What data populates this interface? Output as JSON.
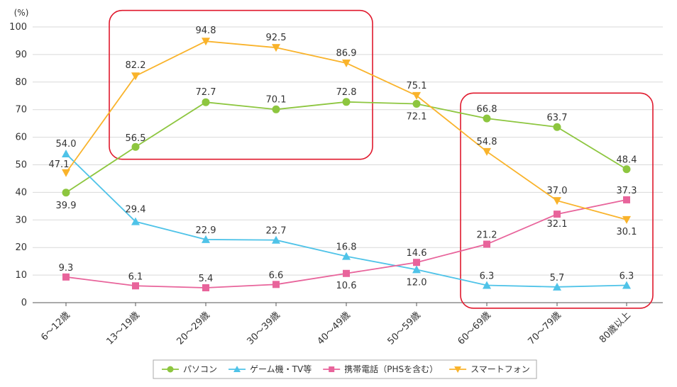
{
  "chart_data": {
    "type": "line",
    "unit_label": "(%)",
    "categories": [
      "6～12歳",
      "13～19歳",
      "20～29歳",
      "30～39歳",
      "40～49歳",
      "50～59歳",
      "60～69歳",
      "70～79歳",
      "80歳以上"
    ],
    "y_ticks": [
      "0",
      "10",
      "20",
      "30",
      "40",
      "50",
      "60",
      "70",
      "80",
      "90",
      "100"
    ],
    "ylim": [
      0,
      100
    ],
    "grid": "horizontal",
    "legend_position": "bottom",
    "series": [
      {
        "name": "パソコン",
        "color": "#8dc63f",
        "marker": "circle",
        "values": [
          39.9,
          56.5,
          72.7,
          70.1,
          72.8,
          72.1,
          66.8,
          63.7,
          48.4
        ],
        "labels": [
          "39.9",
          "56.5",
          "72.7",
          "70.1",
          "72.8",
          "72.1",
          "66.8",
          "63.7",
          "48.4"
        ]
      },
      {
        "name": "ゲーム機・TV等",
        "color": "#4fc3e8",
        "marker": "triangle-up",
        "values": [
          54.0,
          29.4,
          22.9,
          22.7,
          16.8,
          12.0,
          6.3,
          5.7,
          6.3
        ],
        "labels": [
          "54.0",
          "29.4",
          "22.9",
          "22.7",
          "16.8",
          "12.0",
          "6.3",
          "5.7",
          "6.3"
        ]
      },
      {
        "name": "携帯電話（PHSを含む）",
        "color": "#e8649b",
        "marker": "square",
        "values": [
          9.3,
          6.1,
          5.4,
          6.6,
          10.6,
          14.6,
          21.2,
          32.1,
          37.3
        ],
        "labels": [
          "9.3",
          "6.1",
          "5.4",
          "6.6",
          "10.6",
          "14.6",
          "21.2",
          "32.1",
          "37.3"
        ]
      },
      {
        "name": "スマートフォン",
        "color": "#f9b32b",
        "marker": "triangle-down",
        "values": [
          47.1,
          82.2,
          94.8,
          92.5,
          86.9,
          75.1,
          54.8,
          37.0,
          30.1
        ],
        "labels": [
          "47.1",
          "82.2",
          "94.8",
          "92.5",
          "86.9",
          "75.1",
          "54.8",
          "37.0",
          "30.1"
        ]
      }
    ],
    "highlight_boxes": [
      {
        "from": "13～19歳",
        "to": "40～49歳",
        "y_range": [
          52,
          106
        ]
      },
      {
        "from": "60～69歳",
        "to": "80歳以上",
        "y_range": [
          -2,
          76
        ]
      }
    ],
    "highlight_color": "#e0192d"
  }
}
